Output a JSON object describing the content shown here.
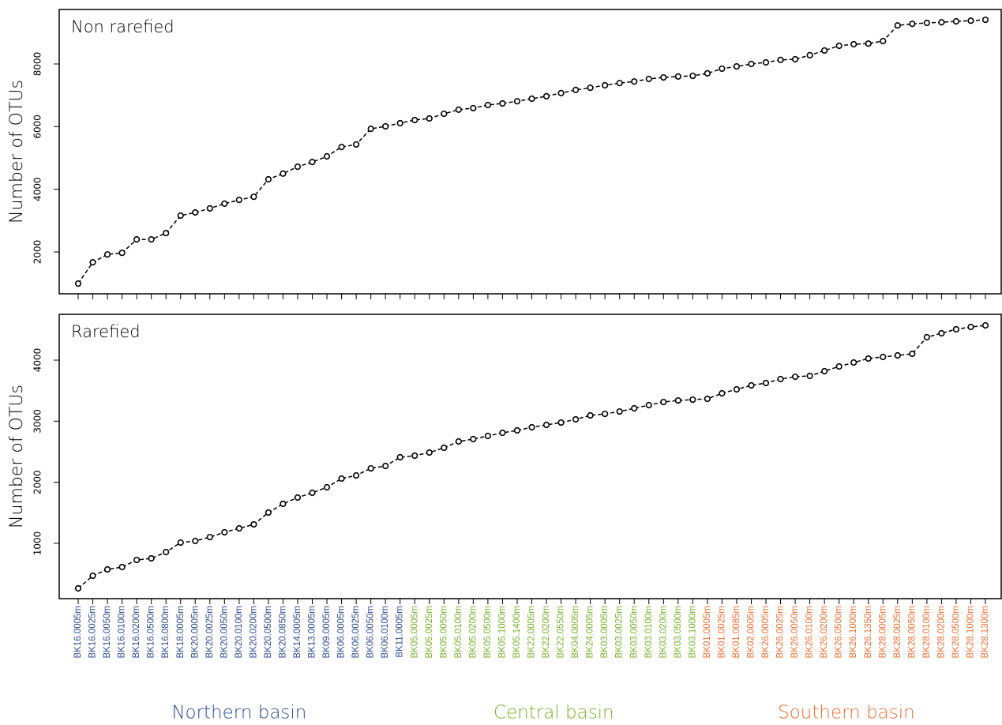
{
  "chart_data": [
    {
      "type": "line",
      "annotation": "Non rarefied",
      "ylabel": "Number of OTUs",
      "values": [
        990,
        1670,
        1920,
        1970,
        2400,
        2400,
        2600,
        3160,
        3260,
        3390,
        3540,
        3660,
        3760,
        4320,
        4500,
        4720,
        4870,
        5050,
        5350,
        5430,
        5930,
        6010,
        6110,
        6210,
        6260,
        6410,
        6540,
        6590,
        6690,
        6740,
        6810,
        6890,
        6970,
        7070,
        7170,
        7240,
        7320,
        7390,
        7440,
        7520,
        7570,
        7600,
        7620,
        7700,
        7850,
        7920,
        8000,
        8050,
        8130,
        8150,
        8280,
        8430,
        8580,
        8630,
        8650,
        8730,
        9230,
        9280,
        9310,
        9330,
        9360,
        9380,
        9410
      ],
      "color": "#000000",
      "ylim": [
        664,
        9739
      ],
      "yticks": [
        2000,
        4000,
        6000,
        8000
      ]
    },
    {
      "type": "line",
      "annotation": "Rarefied",
      "ylabel": "Number of OTUs",
      "groups": [
        {
          "name": "Northern basin",
          "color": "#2d4d94",
          "categories": [
            "BK16.0005m",
            "BK16.0025m",
            "BK16.0050m",
            "BK16.0100m",
            "BK16.0200m",
            "BK16.0500m",
            "BK16.0800m",
            "BK18.0005m",
            "BK20.0005m",
            "BK20.0025m",
            "BK20.0050m",
            "BK20.0100m",
            "BK20.0200m",
            "BK20.0500m",
            "BK20.0850m",
            "BK14.0005m",
            "BK13.0005m",
            "BK09.0005m",
            "BK06.0005m",
            "BK06.0025m",
            "BK06.0050m",
            "BK06.0100m",
            "BK11.0005m"
          ]
        },
        {
          "name": "Central basin",
          "color": "#78b42e",
          "categories": [
            "BK05.0005m",
            "BK05.0025m",
            "BK05.0050m",
            "BK05.0100m",
            "BK05.0200m",
            "BK05.0500m",
            "BK05.1000m",
            "BK05.1400m",
            "BK22.0005m",
            "BK22.0200m",
            "BK22.0550m",
            "BK04.0005m",
            "BK24.0005m",
            "BK03.0005m",
            "BK03.0025m",
            "BK03.0050m",
            "BK03.0100m",
            "BK03.0200m",
            "BK03.0500m",
            "BK03.1000m"
          ]
        },
        {
          "name": "Southern basin",
          "color": "#ee7033",
          "categories": [
            "BK01.0005m",
            "BK01.0025m",
            "BK01.0085m",
            "BK02.0005m",
            "BK26.0005m",
            "BK26.0025m",
            "BK26.0050m",
            "BK26.0100m",
            "BK26.0200m",
            "BK26.0500m",
            "BK26.1000m",
            "BK26.1350m",
            "BK28.0005m",
            "BK28.0025m",
            "BK28.0050m",
            "BK28.0100m",
            "BK28.0200m",
            "BK28.0500m",
            "BK28.1000m",
            "BK28.1300m"
          ]
        }
      ],
      "values": [
        263,
        470,
        573,
        612,
        728,
        754,
        857,
        1013,
        1039,
        1103,
        1181,
        1246,
        1310,
        1504,
        1647,
        1750,
        1828,
        1918,
        2060,
        2112,
        2228,
        2267,
        2410,
        2436,
        2487,
        2565,
        2668,
        2707,
        2759,
        2810,
        2849,
        2901,
        2940,
        2978,
        3030,
        3095,
        3120,
        3159,
        3211,
        3263,
        3314,
        3340,
        3353,
        3366,
        3457,
        3522,
        3586,
        3625,
        3690,
        3728,
        3741,
        3819,
        3897,
        3961,
        4026,
        4052,
        4078,
        4103,
        4375,
        4440,
        4505,
        4543,
        4569
      ],
      "color": "#000000",
      "ylim": [
        95,
        4750
      ],
      "yticks": [
        1000,
        2000,
        3000,
        4000
      ]
    }
  ]
}
